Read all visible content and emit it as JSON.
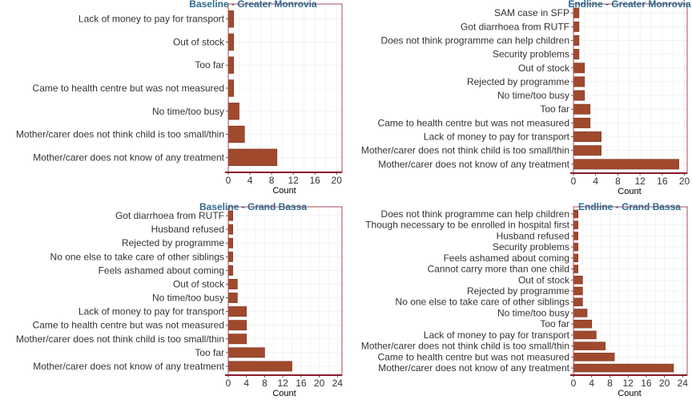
{
  "chart_data": [
    {
      "type": "bar",
      "orientation": "horizontal",
      "title": "Baseline - Greater Monrovia",
      "xlabel": "Count",
      "xlim": [
        0,
        21
      ],
      "xticks": [
        0,
        4,
        8,
        12,
        16,
        20
      ],
      "grid": true,
      "categories": [
        "Lack of money to pay for transport",
        "Out of stock",
        "Too far",
        "Came to health centre but was not measured",
        "No time/too busy",
        "Mother/carer does not think child is too small/thin",
        "Mother/carer does not know of any treatment"
      ],
      "values": [
        1,
        1,
        1,
        1,
        2,
        3,
        9
      ]
    },
    {
      "type": "bar",
      "orientation": "horizontal",
      "title": "Endline - Greater Monrovia",
      "xlabel": "Count",
      "xlim": [
        0,
        20.5
      ],
      "xticks": [
        0,
        4,
        8,
        12,
        16,
        20
      ],
      "grid": true,
      "categories": [
        "SAM case in SFP",
        "Got diarrhoea from RUTF",
        "Does not think programme can help children",
        "Security problems",
        "Out of stock",
        "Rejected by programme",
        "No time/too busy",
        "Too far",
        "Came to health centre but was not measured",
        "Lack of money to pay for transport",
        "Mother/carer does not think child is too small/thin",
        "Mother/carer does not know of any treatment"
      ],
      "values": [
        1,
        1,
        1,
        1,
        2,
        2,
        2,
        3,
        3,
        5,
        5,
        19
      ]
    },
    {
      "type": "bar",
      "orientation": "horizontal",
      "title": "Baseline - Grand Bassa",
      "xlabel": "Count",
      "xlim": [
        0,
        25
      ],
      "xticks": [
        0,
        4,
        8,
        12,
        16,
        20,
        24
      ],
      "grid": true,
      "categories": [
        "Got diarrhoea from RUTF",
        "Husband refused",
        "Rejected by programme",
        "No one else to take care of other siblings",
        "Feels ashamed about coming",
        "Out of stock",
        "No time/too busy",
        "Lack of money to pay for transport",
        "Came to health centre but was not measured",
        "Mother/carer does not think child is too small/thin",
        "Too far",
        "Mother/carer does not know of any treatment"
      ],
      "values": [
        1,
        1,
        1,
        1,
        1,
        2,
        2,
        4,
        4,
        4,
        8,
        14
      ]
    },
    {
      "type": "bar",
      "orientation": "horizontal",
      "title": "Endline - Grand Bassa",
      "xlabel": "Count",
      "xlim": [
        0,
        25
      ],
      "xticks": [
        0,
        4,
        8,
        12,
        16,
        20,
        24
      ],
      "grid": true,
      "categories": [
        "Does not think programme can help children",
        "Though necessary to be enrolled in hospital first",
        "Husband refused",
        "Security problems",
        "Feels ashamed about coming",
        "Cannot carry more than one child",
        "Out of stock",
        "Rejected by programme",
        "No one else to take care of other siblings",
        "No time/too busy",
        "Too far",
        "Lack of money to pay for transport",
        "Mother/carer does not think child is too small/thin",
        "Came to health centre but was not measured",
        "Mother/carer does not know of any treatment"
      ],
      "values": [
        1,
        1,
        1,
        1,
        1,
        1,
        2,
        2,
        2,
        3,
        4,
        5,
        7,
        9,
        22
      ]
    }
  ],
  "colors": {
    "bar": "#a0492d",
    "title": "#2f6a8f",
    "panel_border": "#a84a5a",
    "axis_line": "#8b1a2a",
    "grid": "#ebebeb"
  }
}
